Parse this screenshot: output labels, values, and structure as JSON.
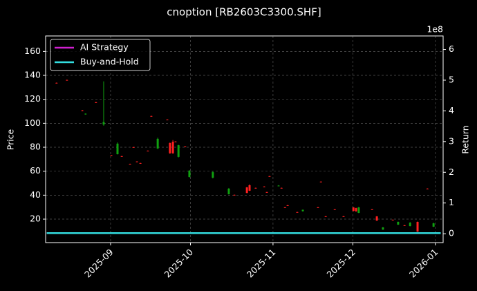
{
  "chart_data": {
    "type": "candlestick",
    "title": "cnoption [RB2603C3300.SHF]",
    "y_label": "Price",
    "y2_label": "Return",
    "y2_offset_label": "1e8",
    "candles": {
      "up_color": "#ff2020",
      "down_color": "#10a010",
      "x": [
        -20.3,
        -16.4,
        -10.6,
        -9.4,
        -5.5,
        -2.6,
        0.3,
        2.6,
        4.2,
        7.3,
        8.6,
        9.9,
        11.2,
        14,
        15.3,
        17.7,
        21.3,
        22.3,
        23.4,
        24.4,
        25.5,
        28,
        29.6,
        38.4,
        44.4,
        46.5,
        51.2,
        52.2,
        54.5,
        57.7,
        58.7,
        59.7,
        63.1,
        64.2,
        65.5,
        66.5,
        70.1,
        72.2,
        77.9,
        79,
        80.8,
        84.2,
        87.5,
        91.2,
        92.2,
        93.2,
        98.2,
        100,
        102.3,
        106,
        108,
        110.4,
        112.5,
        115.3,
        119,
        121.3
      ],
      "open": [
        133.4,
        135.8,
        110.3,
        108,
        117.2,
        101,
        72.8,
        83,
        72.3,
        65.8,
        79.8,
        67.8,
        66.5,
        76.8,
        105.8,
        87,
        102.8,
        75,
        75,
        84.4,
        81.7,
        80.4,
        60.4,
        59.2,
        45.4,
        40,
        41.9,
        43.7,
        45.8,
        46.9,
        42.3,
        55.6,
        48,
        45.8,
        29.6,
        31.3,
        25.6,
        27.8,
        29.6,
        51,
        22.1,
        27.9,
        22.1,
        26.9,
        26.5,
        29.8,
        27.9,
        18.8,
        13.1,
        19.2,
        17.7,
        14.6,
        17,
        9.6,
        45.2,
        16.5
      ],
      "high": [
        134,
        136.4,
        111,
        108.2,
        117.8,
        135,
        73.4,
        84,
        72.8,
        66.3,
        80.3,
        68.3,
        67,
        77.3,
        106.3,
        88,
        103.3,
        84,
        86,
        85,
        82,
        80.9,
        61,
        60,
        46,
        40.5,
        46.8,
        49,
        46.3,
        47.4,
        42.8,
        56.1,
        48.4,
        46.3,
        30.1,
        31.8,
        26.1,
        28,
        30.1,
        51.5,
        22.6,
        28.4,
        22.6,
        30,
        29.5,
        30.2,
        28.4,
        22.5,
        13.4,
        19.7,
        18,
        15.1,
        17.5,
        18,
        45.7,
        17
      ],
      "low": [
        133.2,
        135.6,
        110,
        107.2,
        117,
        98,
        72.6,
        74,
        72.1,
        65.6,
        79.6,
        67.6,
        66.3,
        76.6,
        105.6,
        78.5,
        102.6,
        74.5,
        74.5,
        84.2,
        71.5,
        80.2,
        54.8,
        54,
        40.5,
        39.8,
        41.5,
        43.5,
        45.6,
        46.7,
        42.1,
        55.4,
        47.4,
        45.6,
        29.4,
        31.1,
        25.4,
        26.3,
        29.4,
        50.8,
        21.9,
        27.7,
        21.9,
        26.5,
        26.2,
        25,
        27.7,
        18.5,
        11,
        19,
        15.2,
        14.4,
        14,
        9.4,
        45,
        13.4
      ],
      "close": [
        133.8,
        136.2,
        110.8,
        107.4,
        117.6,
        99,
        73.2,
        74.2,
        72.6,
        66.1,
        80.1,
        68.1,
        66.8,
        77.1,
        106.1,
        79,
        103.1,
        83.5,
        84.6,
        84.8,
        72,
        80.7,
        55.2,
        54.6,
        40.8,
        40.3,
        46.5,
        48.3,
        46.1,
        47.2,
        42.6,
        55.9,
        47.6,
        46.1,
        29.9,
        31.6,
        25.9,
        26.6,
        29.9,
        51.3,
        22.4,
        28.2,
        22.4,
        29.8,
        29.2,
        25.2,
        28.2,
        22.3,
        11.3,
        19.5,
        15.4,
        14.9,
        14.2,
        17.7,
        45.5,
        13.7
      ]
    },
    "series": [
      {
        "name": "AI Strategy",
        "color": "#d020d0",
        "axis": "y2",
        "x": [
          -24,
          124
        ],
        "values": [
          0.02,
          0.02
        ]
      },
      {
        "name": "Buy-and-Hold",
        "color": "#33dde0",
        "axis": "y2",
        "x": [
          -24,
          124
        ],
        "values": [
          0.02,
          0.02
        ]
      }
    ],
    "xlim": [
      -24.4,
      124.9
    ],
    "xticks": [
      {
        "value": 0,
        "label": "2025-09"
      },
      {
        "value": 30,
        "label": "2025-10"
      },
      {
        "value": 61,
        "label": "2025-11"
      },
      {
        "value": 91,
        "label": "2025-12"
      },
      {
        "value": 122,
        "label": "2026-01"
      }
    ],
    "ylim": [
      0.4,
      172.9
    ],
    "yticks": [
      20,
      40,
      60,
      80,
      100,
      120,
      140,
      160
    ],
    "y2lim": [
      -0.29,
      6.44
    ],
    "y2ticks": [
      0,
      1,
      2,
      3,
      4,
      5,
      6
    ],
    "grid": true,
    "legend": "upper left"
  }
}
